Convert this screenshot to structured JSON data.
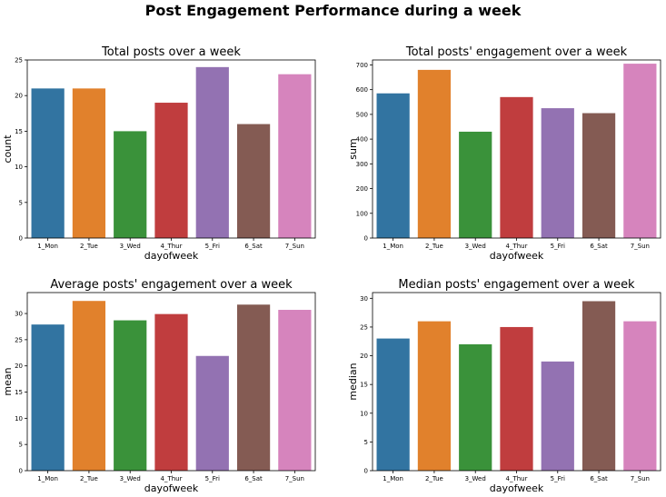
{
  "figure": {
    "title": "Post Engagement Performance during a week"
  },
  "colors": [
    "#3274a1",
    "#e1812c",
    "#3a923a",
    "#c03d3e",
    "#9372b2",
    "#845b53",
    "#d684bd"
  ],
  "chart_data": [
    {
      "type": "bar",
      "title": "Total posts over a week",
      "xlabel": "dayofweek",
      "ylabel": "count",
      "categories": [
        "1_Mon",
        "2_Tue",
        "3_Wed",
        "4_Thur",
        "5_Fri",
        "6_Sat",
        "7_Sun"
      ],
      "values": [
        21,
        21,
        15,
        19,
        24,
        16,
        23
      ],
      "ylim": [
        0,
        25
      ],
      "yticks": [
        0,
        5,
        10,
        15,
        20,
        25
      ],
      "grid": false
    },
    {
      "type": "bar",
      "title": "Total posts' engagement over a week",
      "xlabel": "dayofweek",
      "ylabel": "sum",
      "categories": [
        "1_Mon",
        "2_Tue",
        "3_Wed",
        "4_Thur",
        "5_Fri",
        "6_Sat",
        "7_Sun"
      ],
      "values": [
        585,
        680,
        430,
        570,
        525,
        505,
        705
      ],
      "ylim": [
        0,
        720
      ],
      "yticks": [
        0,
        100,
        200,
        300,
        400,
        500,
        600,
        700
      ],
      "grid": false
    },
    {
      "type": "bar",
      "title": "Average posts' engagement over a week",
      "xlabel": "dayofweek",
      "ylabel": "mean",
      "categories": [
        "1_Mon",
        "2_Tue",
        "3_Wed",
        "4_Thur",
        "5_Fri",
        "6_Sat",
        "7_Sun"
      ],
      "values": [
        27.9,
        32.4,
        28.7,
        29.9,
        21.9,
        31.7,
        30.7
      ],
      "ylim": [
        0,
        34
      ],
      "yticks": [
        0,
        5,
        10,
        15,
        20,
        25,
        30
      ],
      "grid": false
    },
    {
      "type": "bar",
      "title": "Median posts' engagement over a week",
      "xlabel": "dayofweek",
      "ylabel": "median",
      "categories": [
        "1_Mon",
        "2_Tue",
        "3_Wed",
        "4_Thur",
        "5_Fri",
        "6_Sat",
        "7_Sun"
      ],
      "values": [
        23,
        26,
        22,
        25,
        19,
        29.5,
        26
      ],
      "ylim": [
        0,
        31
      ],
      "yticks": [
        0,
        5,
        10,
        15,
        20,
        25,
        30
      ],
      "grid": false
    }
  ]
}
